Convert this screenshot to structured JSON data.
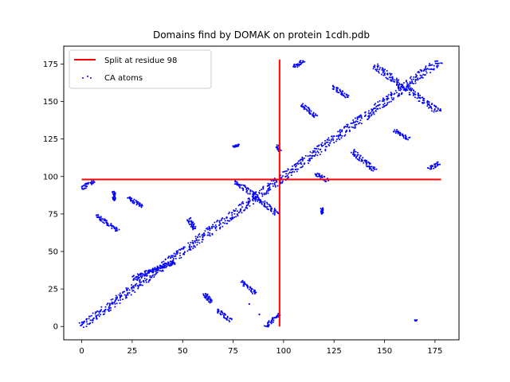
{
  "chart_data": {
    "type": "scatter",
    "title": "Domains find by DOMAK on protein 1cdh.pdb",
    "xlabel": "",
    "ylabel": "",
    "xlim": [
      -8.9,
      186.9
    ],
    "ylim": [
      -8.9,
      186.9
    ],
    "xticks": [
      0,
      25,
      50,
      75,
      100,
      125,
      150,
      175
    ],
    "yticks": [
      0,
      25,
      50,
      75,
      100,
      125,
      150,
      175
    ],
    "grid": false,
    "legend_position": "top-left",
    "split": {
      "name": "Split at residue 98",
      "residue": 98,
      "x_extent": [
        0,
        178
      ],
      "y_extent": [
        0,
        178
      ],
      "color": "#ff0000"
    },
    "scatter": {
      "name": "CA atoms",
      "color": "#0000ff",
      "segments": [
        {
          "from": [
            0,
            0
          ],
          "to": [
            177,
            177
          ],
          "band": 2.5
        },
        {
          "from": [
            0,
            92
          ],
          "to": [
            6,
            97
          ],
          "band": 1.2
        },
        {
          "from": [
            7,
            74
          ],
          "to": [
            18,
            64
          ],
          "band": 1.2
        },
        {
          "from": [
            16,
            90
          ],
          "to": [
            16,
            84
          ],
          "band": 0.8
        },
        {
          "from": [
            23,
            86
          ],
          "to": [
            30,
            80
          ],
          "band": 1.2
        },
        {
          "from": [
            25,
            32
          ],
          "to": [
            46,
            43
          ],
          "band": 1.5
        },
        {
          "from": [
            53,
            72
          ],
          "to": [
            56,
            65
          ],
          "band": 1.2
        },
        {
          "from": [
            61,
            22
          ],
          "to": [
            64,
            16
          ],
          "band": 1.2
        },
        {
          "from": [
            67,
            11
          ],
          "to": [
            74,
            4
          ],
          "band": 1.2
        },
        {
          "from": [
            75,
            120
          ],
          "to": [
            78,
            121
          ],
          "band": 0.6
        },
        {
          "from": [
            76,
            97
          ],
          "to": [
            97,
            75
          ],
          "band": 1.5
        },
        {
          "from": [
            79,
            30
          ],
          "to": [
            86,
            22
          ],
          "band": 1.2
        },
        {
          "from": [
            83,
            15
          ],
          "to": [
            83,
            15
          ],
          "band": 0.4
        },
        {
          "from": [
            88,
            8
          ],
          "to": [
            88,
            8
          ],
          "band": 0.4
        },
        {
          "from": [
            91,
            0
          ],
          "to": [
            98,
            8
          ],
          "band": 1.2
        },
        {
          "from": [
            97,
            121
          ],
          "to": [
            98,
            117
          ],
          "band": 1.0
        },
        {
          "from": [
            105,
            173
          ],
          "to": [
            110,
            177
          ],
          "band": 1.2
        },
        {
          "from": [
            109,
            148
          ],
          "to": [
            116,
            140
          ],
          "band": 1.2
        },
        {
          "from": [
            116,
            102
          ],
          "to": [
            122,
            97
          ],
          "band": 1.2
        },
        {
          "from": [
            119,
            79
          ],
          "to": [
            119,
            75
          ],
          "band": 0.6
        },
        {
          "from": [
            124,
            160
          ],
          "to": [
            132,
            153
          ],
          "band": 1.2
        },
        {
          "from": [
            134,
            117
          ],
          "to": [
            145,
            104
          ],
          "band": 1.5
        },
        {
          "from": [
            145,
            174
          ],
          "to": [
            177,
            143
          ],
          "band": 2.0
        },
        {
          "from": [
            155,
            131
          ],
          "to": [
            162,
            125
          ],
          "band": 1.2
        },
        {
          "from": [
            165,
            4
          ],
          "to": [
            166,
            4
          ],
          "band": 0.4
        },
        {
          "from": [
            172,
            105
          ],
          "to": [
            177,
            109
          ],
          "band": 1.2
        }
      ]
    }
  }
}
